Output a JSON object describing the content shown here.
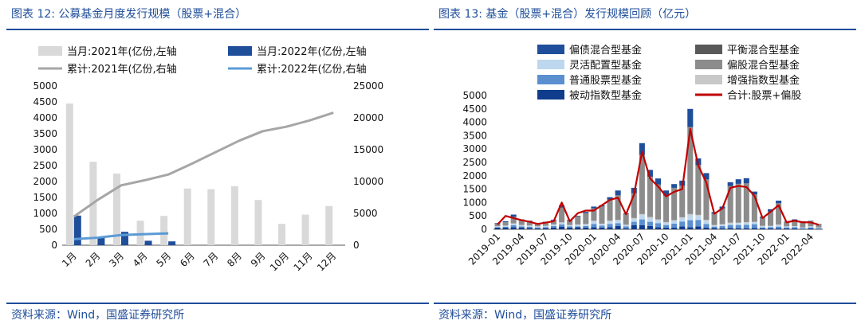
{
  "left": {
    "title": "图表 12:  公募基金月度发行规模（股票+混合）",
    "source": "资料来源：Wind，国盛证券研究所",
    "colors": {
      "bar2021": "#d9d9d9",
      "bar2022": "#1f4e9a",
      "line2021": "#a6a6a6",
      "line2022": "#5b9bd5"
    },
    "chart_data": {
      "type": "bar",
      "categories": [
        "1月",
        "2月",
        "3月",
        "4月",
        "5月",
        "6月",
        "7月",
        "8月",
        "9月",
        "10月",
        "11月",
        "12月"
      ],
      "y_left_ticks": [
        0,
        500,
        1000,
        1500,
        2000,
        2500,
        3000,
        3500,
        4000,
        4500,
        5000
      ],
      "y_right_ticks": [
        0,
        5000,
        10000,
        15000,
        20000,
        25000
      ],
      "ylim_left": [
        0,
        5000
      ],
      "ylim_right": [
        0,
        25000
      ],
      "series": [
        {
          "name": "当月:2021年(亿份,左轴",
          "kind": "bar",
          "axis": "left",
          "values": [
            4450,
            2620,
            2250,
            770,
            920,
            1780,
            1760,
            1850,
            1420,
            670,
            960,
            1230
          ]
        },
        {
          "name": "当月:2022年(亿份,左轴",
          "kind": "bar",
          "axis": "left",
          "values": [
            930,
            230,
            420,
            140,
            120,
            null,
            null,
            null,
            null,
            null,
            null,
            null
          ]
        },
        {
          "name": "累计:2021年(亿份,右轴",
          "kind": "line",
          "axis": "right",
          "values": [
            4500,
            7100,
            9400,
            10200,
            11100,
            12800,
            14600,
            16400,
            17900,
            18600,
            19600,
            20800
          ]
        },
        {
          "name": "累计:2022年(亿份,右轴",
          "kind": "line",
          "axis": "right",
          "values": [
            950,
            1180,
            1600,
            1740,
            1860,
            null,
            null,
            null,
            null,
            null,
            null,
            null
          ]
        }
      ]
    }
  },
  "right": {
    "title": "图表 13:  基金（股票+混合）发行规模回顾（亿元）",
    "source": "资料来源：Wind，国盛证券研究所",
    "chart_data": {
      "type": "bar",
      "stacked": true,
      "months": [
        "2019-01",
        "2019-02",
        "2019-03",
        "2019-04",
        "2019-05",
        "2019-06",
        "2019-07",
        "2019-08",
        "2019-09",
        "2019-10",
        "2019-11",
        "2019-12",
        "2020-01",
        "2020-02",
        "2020-03",
        "2020-04",
        "2020-05",
        "2020-06",
        "2020-07",
        "2020-08",
        "2020-09",
        "2020-10",
        "2020-11",
        "2020-12",
        "2021-01",
        "2021-02",
        "2021-03",
        "2021-04",
        "2021-05",
        "2021-06",
        "2021-07",
        "2021-08",
        "2021-09",
        "2021-10",
        "2021-11",
        "2021-12",
        "2022-01",
        "2022-02",
        "2022-03",
        "2022-04",
        "2022-05"
      ],
      "x_tick_labels": [
        "2019-01",
        "2019-04",
        "2019-07",
        "2019-10",
        "2020-01",
        "2020-04",
        "2020-07",
        "2020-10",
        "2021-01",
        "2021-04",
        "2021-07",
        "2021-10",
        "2022-01",
        "2022-04"
      ],
      "y_ticks": [
        0,
        500,
        1000,
        1500,
        2000,
        2500,
        3000,
        3500,
        4000,
        4500,
        5000
      ],
      "ylim": [
        0,
        5000
      ],
      "legend": [
        {
          "name": "偏债混合型基金",
          "color": "#1f4e9a",
          "kind": "bar"
        },
        {
          "name": "平衡混合型基金",
          "color": "#595959",
          "kind": "bar"
        },
        {
          "name": "灵活配置型基金",
          "color": "#bdd7ee",
          "kind": "bar"
        },
        {
          "name": "偏股混合型基金",
          "color": "#8c8c8c",
          "kind": "bar"
        },
        {
          "name": "普通股票型基金",
          "color": "#5b8fd0",
          "kind": "bar"
        },
        {
          "name": "增强指数型基金",
          "color": "#c8c8c8",
          "kind": "bar"
        },
        {
          "name": "被动指数型基金",
          "color": "#0f3c8c",
          "kind": "bar"
        },
        {
          "name": "合计:股票+偏股",
          "color": "#c00000",
          "kind": "line"
        }
      ],
      "stack_series": [
        {
          "name": "被动指数型基金",
          "color": "#0f3c8c",
          "values": [
            60,
            60,
            80,
            70,
            50,
            30,
            50,
            60,
            100,
            60,
            80,
            60,
            80,
            60,
            80,
            120,
            40,
            150,
            150,
            120,
            80,
            60,
            60,
            110,
            80,
            110,
            60,
            50,
            40,
            50,
            40,
            40,
            50,
            30,
            30,
            30,
            30,
            30,
            20,
            30,
            20
          ]
        },
        {
          "name": "普通股票型基金",
          "color": "#5b8fd0",
          "values": [
            20,
            30,
            70,
            40,
            40,
            40,
            30,
            60,
            80,
            50,
            30,
            60,
            120,
            80,
            120,
            110,
            70,
            130,
            220,
            160,
            150,
            100,
            150,
            180,
            260,
            240,
            140,
            50,
            80,
            110,
            120,
            130,
            140,
            40,
            50,
            70,
            40,
            50,
            20,
            40,
            20
          ]
        },
        {
          "name": "灵活配置型基金",
          "color": "#bdd7ee",
          "values": [
            30,
            40,
            60,
            40,
            40,
            30,
            40,
            50,
            60,
            40,
            60,
            60,
            100,
            60,
            100,
            100,
            50,
            110,
            160,
            140,
            110,
            90,
            110,
            130,
            180,
            150,
            120,
            40,
            50,
            60,
            70,
            70,
            70,
            40,
            40,
            60,
            30,
            30,
            20,
            30,
            20
          ]
        },
        {
          "name": "增强指数型基金",
          "color": "#c8c8c8",
          "values": [
            10,
            10,
            10,
            10,
            10,
            10,
            10,
            10,
            20,
            10,
            10,
            20,
            20,
            10,
            20,
            20,
            10,
            30,
            40,
            40,
            30,
            20,
            20,
            30,
            50,
            40,
            30,
            20,
            20,
            30,
            20,
            30,
            20,
            20,
            10,
            20,
            10,
            10,
            10,
            10,
            10
          ]
        },
        {
          "name": "偏股混合型基金",
          "color": "#8c8c8c",
          "values": [
            80,
            120,
            240,
            160,
            150,
            110,
            120,
            150,
            540,
            160,
            300,
            400,
            450,
            640,
            780,
            910,
            400,
            920,
            2200,
            1500,
            1300,
            980,
            1200,
            1170,
            3240,
            1850,
            1510,
            420,
            580,
            1360,
            1440,
            1440,
            1010,
            300,
            530,
            790,
            160,
            200,
            180,
            190,
            110
          ]
        },
        {
          "name": "平衡混合型基金",
          "color": "#595959",
          "values": [
            5,
            5,
            5,
            5,
            5,
            5,
            5,
            5,
            10,
            5,
            5,
            5,
            10,
            10,
            10,
            10,
            5,
            10,
            20,
            20,
            10,
            10,
            10,
            10,
            20,
            20,
            10,
            5,
            5,
            10,
            10,
            10,
            10,
            5,
            5,
            5,
            5,
            5,
            5,
            5,
            5
          ]
        },
        {
          "name": "偏债混合型基金",
          "color": "#1f4e9a",
          "values": [
            25,
            35,
            85,
            45,
            25,
            15,
            25,
            25,
            90,
            25,
            20,
            45,
            70,
            40,
            90,
            180,
            25,
            200,
            430,
            240,
            220,
            190,
            140,
            190,
            670,
            240,
            230,
            55,
            75,
            140,
            170,
            190,
            110,
            35,
            85,
            95,
            15,
            45,
            45,
            15,
            15
          ]
        }
      ],
      "line": {
        "name": "合计:股票+偏股",
        "color": "#c00000",
        "values": [
          180,
          500,
          420,
          340,
          280,
          200,
          250,
          300,
          1000,
          300,
          600,
          700,
          700,
          900,
          1100,
          1180,
          560,
          1300,
          2900,
          1900,
          1600,
          1230,
          1400,
          1500,
          3750,
          2380,
          1750,
          580,
          780,
          1550,
          1620,
          1580,
          1250,
          420,
          650,
          900,
          260,
          320,
          260,
          260,
          170
        ]
      }
    }
  }
}
